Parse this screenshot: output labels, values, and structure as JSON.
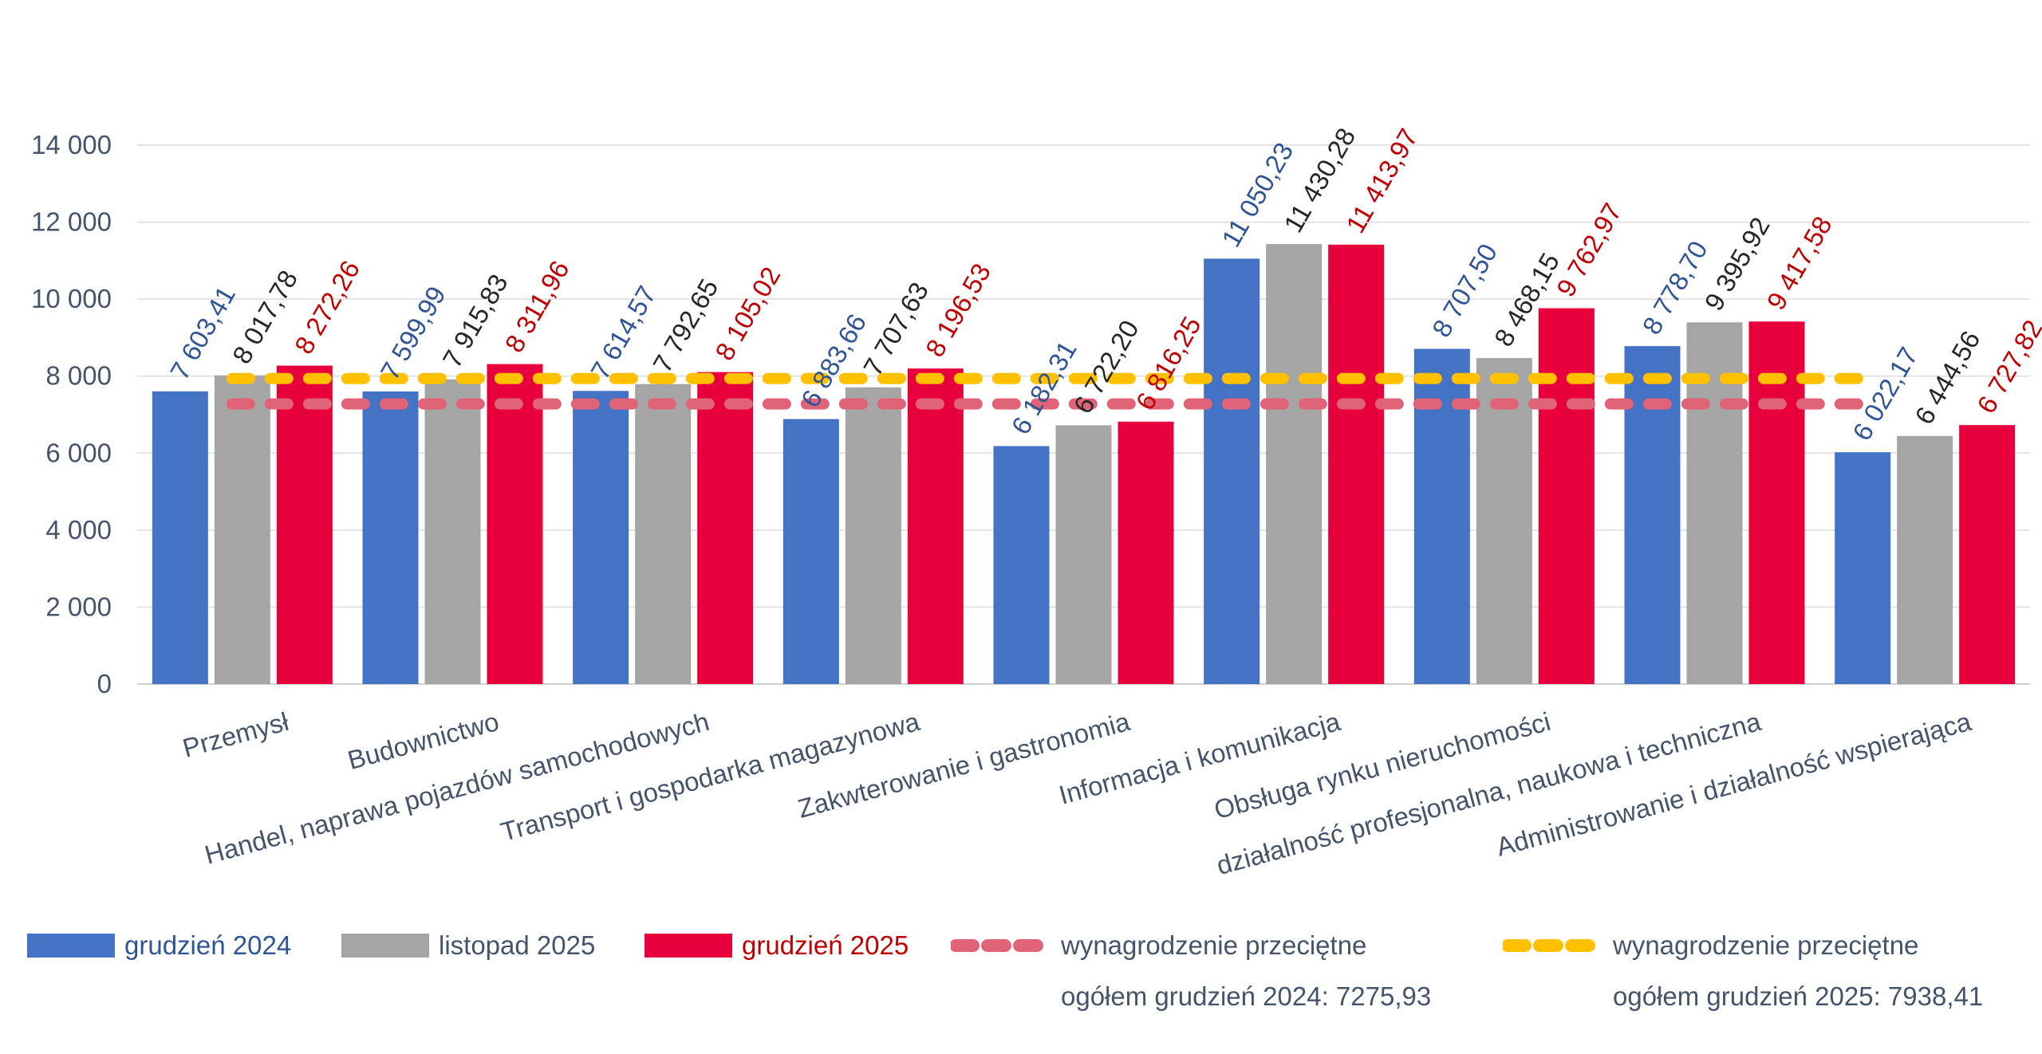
{
  "chart_data": {
    "type": "bar",
    "ylim": [
      0,
      14000
    ],
    "yticks": [
      "0",
      "2 000",
      "4 000",
      "6 000",
      "8 000",
      "10 000",
      "12 000",
      "14 000"
    ],
    "ytick_values": [
      0,
      2000,
      4000,
      6000,
      8000,
      10000,
      12000,
      14000
    ],
    "grid": true,
    "categories": [
      "Przemysł",
      "Budownictwo",
      "Handel, naprawa pojazdów samochodowych",
      "Transport i gospodarka magazynowa",
      "Zakwterowanie i gastronomia",
      "Informacja i komunikacja",
      "Obsługa rynku nieruchomości",
      "działalność profesjonalna, naukowa i techniczna",
      "Administrowanie i działalność wspierająca"
    ],
    "series": [
      {
        "name": "grudzień 2024",
        "color": "#4472c4",
        "label_color": "#2f5597",
        "values": [
          7603.41,
          7599.99,
          7614.57,
          6883.66,
          6182.31,
          11050.23,
          8707.5,
          8778.7,
          6022.17
        ],
        "labels": [
          "7 603,41",
          "7 599,99",
          "7 614,57",
          "6 883,66",
          "6 182,31",
          "11 050,23",
          "8 707,50",
          "8 778,70",
          "6 022,17"
        ]
      },
      {
        "name": "listopad 2025",
        "color": "#a5a5a5",
        "label_color": "#262626",
        "values": [
          8017.78,
          7915.83,
          7792.65,
          7707.63,
          6722.2,
          11430.28,
          8468.15,
          9395.92,
          6444.56
        ],
        "labels": [
          "8 017,78",
          "7 915,83",
          "7 792,65",
          "7 707,63",
          "6 722,20",
          "11 430,28",
          "8 468,15",
          "9 395,92",
          "6 444,56"
        ]
      },
      {
        "name": "grudzień 2025",
        "color": "#e8003d",
        "label_color": "#c00000",
        "values": [
          8272.26,
          8311.96,
          8105.02,
          8196.53,
          6816.25,
          11413.97,
          9762.97,
          9417.58,
          6727.82
        ],
        "labels": [
          "8 272,26",
          "8 311,96",
          "8 105,02",
          "8 196,53",
          "6 816,25",
          "11 413,97",
          "9 762,97",
          "9 417,58",
          "6 727,82"
        ]
      }
    ],
    "reference_lines": [
      {
        "name": "wynagrodzenie przeciętne ogółem grudzień 2024: 7275,93",
        "value": 7275.93,
        "color": "#e06377",
        "style": "dashed"
      },
      {
        "name": "wynagrodzenie przeciętne ogółem grudzień 2025: 7938,41",
        "value": 7938.41,
        "color": "#ffc000",
        "style": "dashed"
      }
    ]
  },
  "legend": {
    "item1": "grudzień 2024",
    "item2": "listopad 2025",
    "item3": "grudzień 2025",
    "item4_line1": "wynagrodzenie przeciętne",
    "item4_line2": "ogółem grudzień 2024: 7275,93",
    "item5_line1": "wynagrodzenie przeciętne",
    "item5_line2": "ogółem grudzień 2025: 7938,41",
    "colors": {
      "blue": "#4472c4",
      "gray": "#a5a5a5",
      "red": "#e8003d",
      "pink": "#e06377",
      "yellow": "#ffc000",
      "text_blue": "#2f5597",
      "text_gray": "#44546a",
      "text_red": "#c00000"
    }
  }
}
